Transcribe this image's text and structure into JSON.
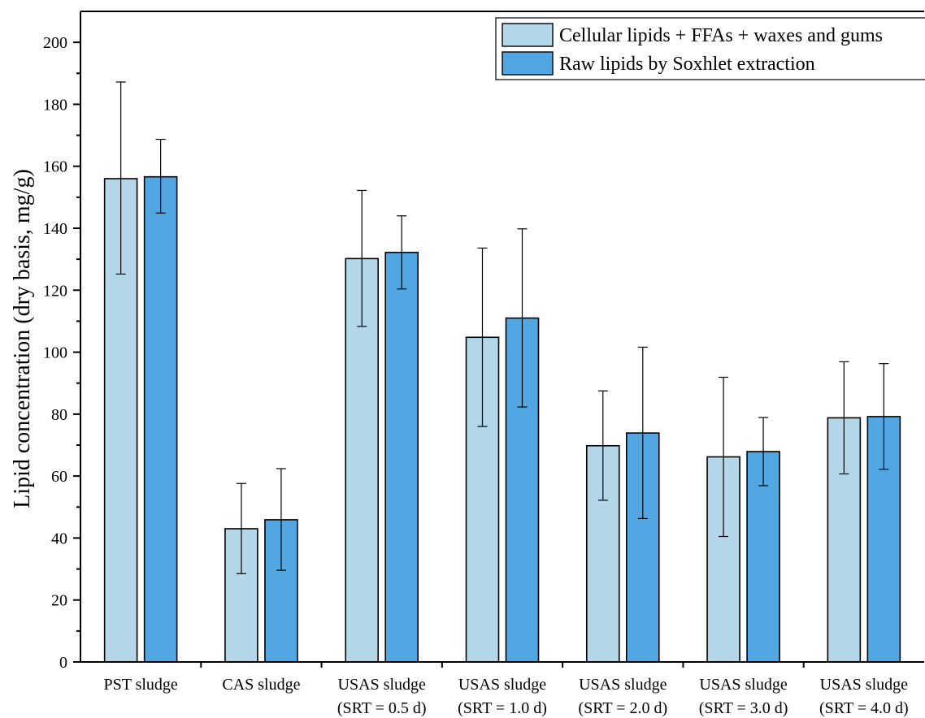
{
  "chart_data": {
    "type": "bar",
    "title": "",
    "xlabel": "",
    "ylabel": "Lipid concentration (dry basis, mg/g)",
    "ylim": [
      0,
      210
    ],
    "yticks": [
      0,
      20,
      40,
      60,
      80,
      100,
      120,
      140,
      160,
      180,
      200
    ],
    "grid": false,
    "legend_position": "top-right",
    "categories": [
      [
        "PST sludge"
      ],
      [
        "CAS sludge"
      ],
      [
        "USAS sludge",
        "(SRT = 0.5 d)"
      ],
      [
        "USAS sludge",
        "(SRT = 1.0 d)"
      ],
      [
        "USAS sludge",
        "(SRT = 2.0 d)"
      ],
      [
        "USAS sludge",
        "(SRT = 3.0 d)"
      ],
      [
        "USAS sludge",
        "(SRT = 4.0 d)"
      ]
    ],
    "series": [
      {
        "name": "Cellular lipids + FFAs + waxes and gums",
        "color": "#b3d6e8",
        "values": [
          156.0,
          43.0,
          130.2,
          104.8,
          69.8,
          66.2,
          78.8
        ],
        "err_low": [
          125.2,
          28.5,
          108.3,
          76.0,
          52.2,
          40.5,
          60.7
        ],
        "err_high": [
          187.2,
          57.6,
          152.2,
          133.6,
          87.5,
          91.9,
          96.9
        ]
      },
      {
        "name": "Raw lipids by Soxhlet extraction",
        "color": "#52a6e1",
        "values": [
          156.6,
          45.9,
          132.2,
          111.0,
          73.9,
          67.9,
          79.2
        ],
        "err_low": [
          144.9,
          29.6,
          120.4,
          82.3,
          46.3,
          56.9,
          62.2
        ],
        "err_high": [
          168.7,
          62.4,
          144.0,
          139.8,
          101.6,
          78.9,
          96.3
        ]
      }
    ]
  }
}
